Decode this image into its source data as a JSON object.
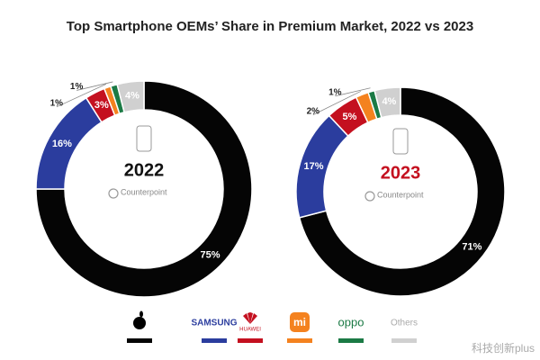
{
  "title": "Top Smartphone OEMs’ Share in Premium Market, 2022 vs 2023",
  "source_logo": "Counterpoint",
  "watermark": "科技创新plus",
  "chart_data": [
    {
      "type": "pie",
      "title": "2022",
      "title_color": "#111111",
      "categories": [
        null,
        "SAMSUNG",
        "HUAWEI",
        "mi",
        "oppo",
        "Others"
      ],
      "values": [
        75,
        16,
        3,
        1,
        1,
        4
      ],
      "value_labels": [
        "75%",
        "16%",
        "3%",
        "1%",
        "1%",
        "4%"
      ],
      "colors": [
        "#050505",
        "#2b3d9e",
        "#c4101f",
        "#f4821f",
        "#1b7a45",
        "#d0d0d0"
      ]
    },
    {
      "type": "pie",
      "title": "2023",
      "title_color": "#c4101f",
      "categories": [
        null,
        "SAMSUNG",
        "HUAWEI",
        "mi",
        "oppo",
        "Others"
      ],
      "values": [
        71,
        17,
        5,
        2,
        1,
        4
      ],
      "value_labels": [
        "71%",
        "17%",
        "5%",
        "2%",
        "1%",
        "4%"
      ],
      "colors": [
        "#050505",
        "#2b3d9e",
        "#c4101f",
        "#f4821f",
        "#1b7a45",
        "#d0d0d0"
      ]
    }
  ]
}
